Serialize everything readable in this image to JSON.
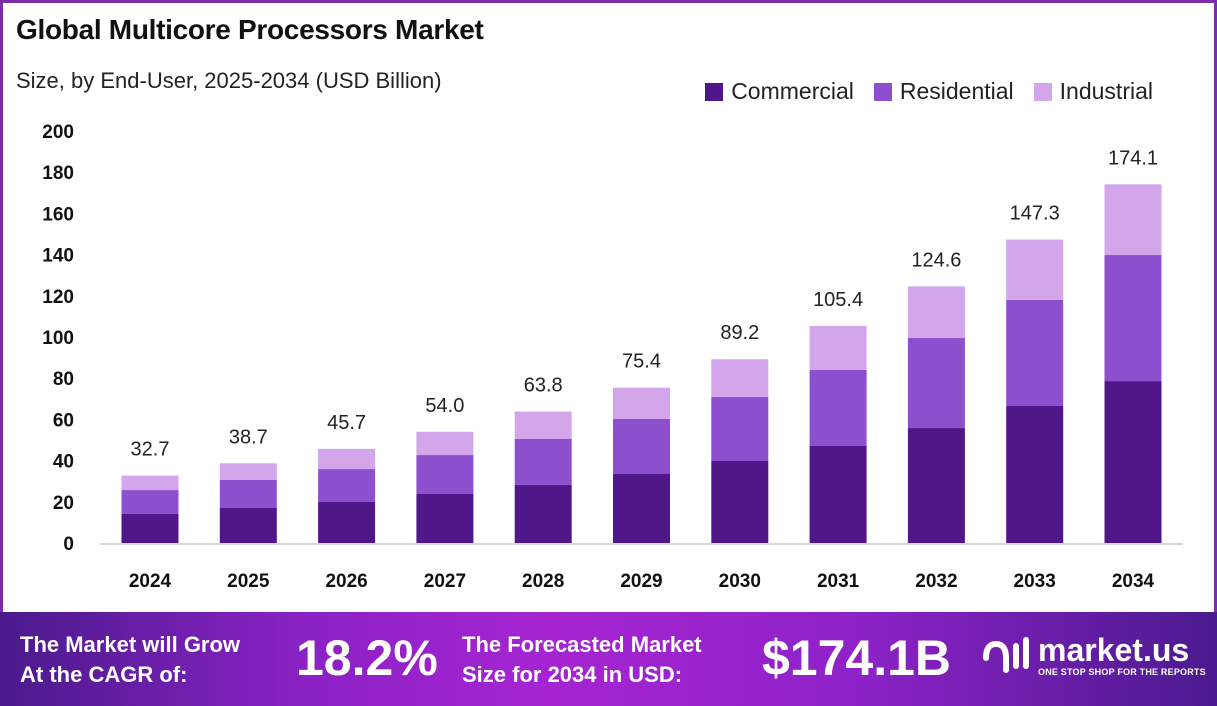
{
  "chart_data": {
    "type": "bar",
    "stacked": true,
    "title": "Global Multicore Processors Market",
    "subtitle": "Size, by End-User, 2025-2034 (USD Billion)",
    "xlabel": "",
    "ylabel": "",
    "ylim": [
      0,
      200
    ],
    "yticks": [
      0,
      20,
      40,
      60,
      80,
      100,
      120,
      140,
      160,
      180,
      200
    ],
    "grid": false,
    "legend_position": "top-right",
    "categories": [
      "2024",
      "2025",
      "2026",
      "2027",
      "2028",
      "2029",
      "2030",
      "2031",
      "2032",
      "2033",
      "2034"
    ],
    "totals": [
      32.7,
      38.7,
      45.7,
      54.0,
      63.8,
      75.4,
      89.2,
      105.4,
      124.6,
      147.3,
      174.1
    ],
    "total_labels": [
      "32.7",
      "38.7",
      "45.7",
      "54.0",
      "63.8",
      "75.4",
      "89.2",
      "105.4",
      "124.6",
      "147.3",
      "174.1"
    ],
    "series": [
      {
        "name": "Commercial",
        "color": "#4f1787",
        "values": [
          14.1,
          17.0,
          19.9,
          23.8,
          28.2,
          33.5,
          39.8,
          47.1,
          55.8,
          66.5,
          78.6
        ]
      },
      {
        "name": "Residential",
        "color": "#8e4fcf",
        "values": [
          11.6,
          13.6,
          16.0,
          18.9,
          22.3,
          26.7,
          31.1,
          36.9,
          43.7,
          51.5,
          61.2
        ]
      },
      {
        "name": "Industrial",
        "color": "#d3a6ec",
        "values": [
          7.0,
          8.1,
          9.8,
          11.3,
          13.3,
          15.2,
          18.3,
          21.4,
          25.1,
          29.3,
          34.3
        ]
      }
    ]
  },
  "banner": {
    "cagr_text_1": "The Market will Grow",
    "cagr_text_2": "At the CAGR of:",
    "cagr_value": "18.2%",
    "forecast_text_1": "The Forecasted Market",
    "forecast_text_2": "Size for 2034 in USD:",
    "forecast_value": "$174.1B",
    "logo_name": "market.us",
    "logo_tagline": "ONE STOP SHOP FOR THE REPORTS"
  }
}
